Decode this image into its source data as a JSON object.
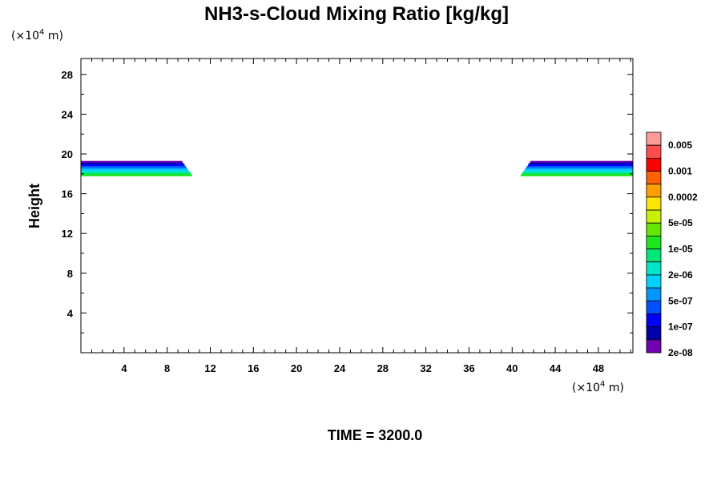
{
  "chart_data": {
    "type": "heatmap",
    "title": "NH3-s-Cloud Mixing Ratio [kg/kg]",
    "ylabel": "Height",
    "x_unit": {
      "prefix": "(×10",
      "exponent": "4",
      "suffix": " m)"
    },
    "y_unit": {
      "prefix": "(×10",
      "exponent": "4",
      "suffix": " m)"
    },
    "xlim": [
      0,
      51.2
    ],
    "ylim": [
      0,
      29.6
    ],
    "x_ticks": [
      4,
      8,
      12,
      16,
      20,
      24,
      28,
      32,
      36,
      40,
      44,
      48
    ],
    "x_tick_labels": [
      "4",
      "8",
      "12",
      "16",
      "20",
      "24",
      "28",
      "32",
      "36",
      "40",
      "44",
      "48"
    ],
    "y_ticks": [
      4,
      8,
      12,
      16,
      20,
      24,
      28
    ],
    "y_tick_labels": [
      "4",
      "8",
      "12",
      "16",
      "20",
      "24",
      "28"
    ],
    "colorbar": {
      "labels": [
        "0.005",
        "0.001",
        "0.0002",
        "5e-05",
        "1e-05",
        "2e-06",
        "5e-07",
        "1e-07",
        "2e-08"
      ],
      "colors_top_to_bottom": [
        "#ff9a9a",
        "#ff4d4d",
        "#ff0000",
        "#ff6000",
        "#ffa000",
        "#ffe600",
        "#c8f000",
        "#64e600",
        "#1ee61e",
        "#00e678",
        "#00e6c8",
        "#00d2ff",
        "#0096ff",
        "#0050ff",
        "#0000ff",
        "#0000aa",
        "#7000b0"
      ]
    },
    "cloud_regions": [
      {
        "name": "left",
        "x_start": 0,
        "x_end": 10.3,
        "y_bottom": 17.8,
        "y_top": 19.3
      },
      {
        "name": "right",
        "x_start": 40.8,
        "x_end": 51.2,
        "y_bottom": 17.8,
        "y_top": 19.3
      }
    ],
    "band_colors_top_to_bottom": [
      "#7000b0",
      "#0000aa",
      "#0000ff",
      "#0050ff",
      "#0096ff",
      "#00d2ff",
      "#00e6c8",
      "#00e678",
      "#1ee61e"
    ],
    "time_label": "TIME = 3200.0"
  }
}
